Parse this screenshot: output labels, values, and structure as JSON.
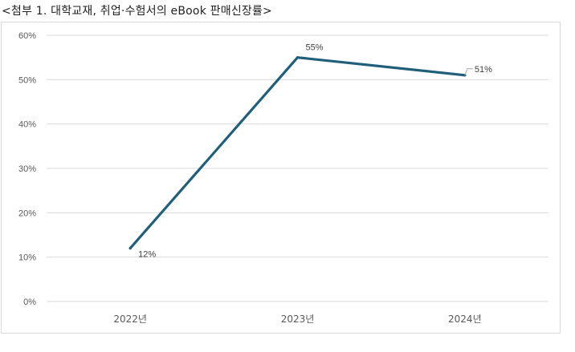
{
  "title": "<첨부 1. 대학교재, 취업·수험서의 eBook 판매신장률>",
  "chart_data": {
    "type": "line",
    "categories": [
      "2022년",
      "2023년",
      "2024년"
    ],
    "series": [
      {
        "values": [
          12,
          55,
          51
        ],
        "data_labels": [
          "12%",
          "55%",
          "51%"
        ]
      }
    ],
    "ylim": [
      0,
      60
    ],
    "yticks": [
      0,
      10,
      20,
      30,
      40,
      50,
      60
    ],
    "ytick_labels": [
      "0%",
      "10%",
      "20%",
      "30%",
      "40%",
      "50%",
      "60%"
    ],
    "grid": true,
    "line_color": "#1f5f7a",
    "xlabel": "",
    "ylabel": ""
  }
}
